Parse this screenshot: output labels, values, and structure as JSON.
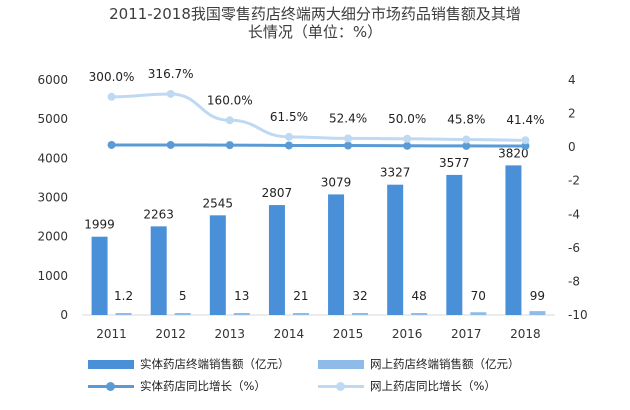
{
  "title_line1": "2011-2018我国零售药店终端两大细分市场药品销售额及其增",
  "title_line2": "长情况（单位：%）",
  "chart_data": {
    "type": "bar+line",
    "categories": [
      "2011",
      "2012",
      "2013",
      "2014",
      "2015",
      "2016",
      "2017",
      "2018"
    ],
    "left_axis": {
      "ylim": [
        0,
        6000
      ],
      "ticks": [
        "0",
        "1000",
        "2000",
        "3000",
        "4000",
        "5000",
        "6000"
      ]
    },
    "right_axis": {
      "ylim": [
        -10,
        4
      ],
      "ticks": [
        "-10",
        "-8",
        "-6",
        "-4",
        "-2",
        "0",
        "2",
        "4"
      ]
    },
    "bar_series": [
      {
        "name": "实体药店终端销售额（亿元）",
        "color": "#4a90d9",
        "values": [
          1999,
          2263,
          2545,
          2807,
          3079,
          3327,
          3577,
          3820
        ],
        "labels": [
          "1999",
          "2263",
          "2545",
          "2807",
          "3079",
          "3327",
          "3577",
          "3820"
        ]
      },
      {
        "name": "网上药店终端销售额（亿元）",
        "color": "#8fbbe8",
        "values": [
          1.2,
          5,
          13,
          21,
          32,
          48,
          70,
          99
        ],
        "labels": [
          "1.2",
          "5",
          "13",
          "21",
          "32",
          "48",
          "70",
          "99"
        ]
      }
    ],
    "line_series": [
      {
        "name": "实体药店同比增长（%）",
        "color": "#5b9bd5",
        "values": [
          0.13,
          0.13,
          0.12,
          0.1,
          0.097,
          0.08,
          0.075,
          0.068
        ],
        "labels": []
      },
      {
        "name": "网上药店同比增长（%）",
        "color": "#bfd9f2",
        "values": [
          3.0,
          3.167,
          1.6,
          0.615,
          0.524,
          0.5,
          0.458,
          0.414
        ],
        "labels": [
          "300.0%",
          "316.7%",
          "160.0%",
          "61.5%",
          "52.4%",
          "50.0%",
          "45.8%",
          "41.4%"
        ]
      }
    ]
  },
  "legend": {
    "bar1": "实体药店终端销售额（亿元）",
    "bar2": "网上药店终端销售额（亿元）",
    "line1": "实体药店同比增长（%）",
    "line2": "网上药店同比增长（%）"
  }
}
